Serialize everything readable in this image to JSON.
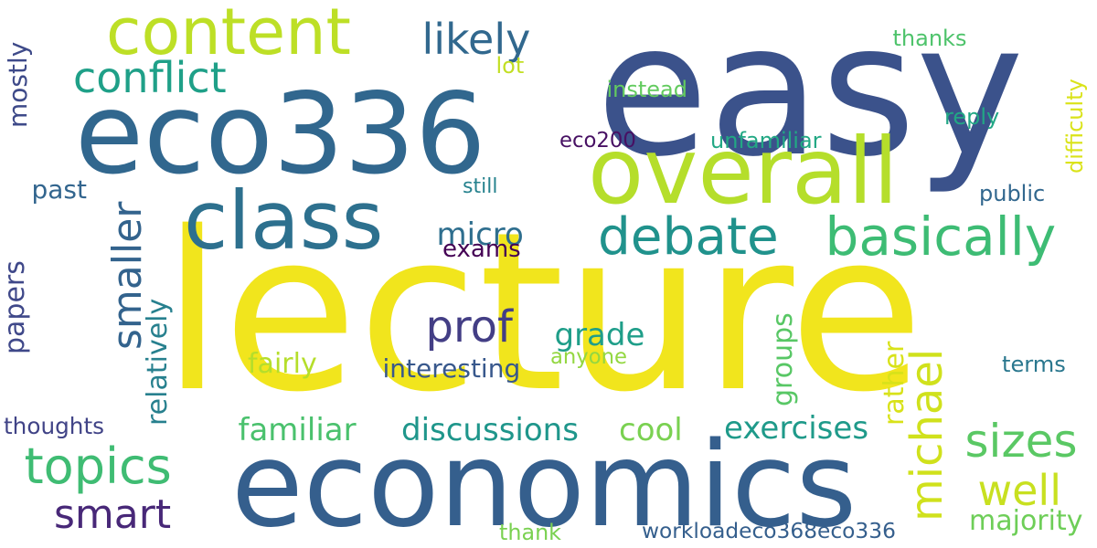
{
  "words": [
    {
      "text": "lecture",
      "color": "#f1e51d"
    },
    {
      "text": "easy",
      "color": "#3b528b"
    },
    {
      "text": "economics",
      "color": "#355f8d"
    },
    {
      "text": "eco336",
      "color": "#31678e"
    },
    {
      "text": "overall",
      "color": "#b5de2b"
    },
    {
      "text": "content",
      "color": "#bddf26"
    },
    {
      "text": "class",
      "color": "#2d708e"
    },
    {
      "text": "debate",
      "color": "#20928c"
    },
    {
      "text": "basically",
      "color": "#3dbc74"
    },
    {
      "text": "topics",
      "color": "#3fbc73"
    },
    {
      "text": "conflict",
      "color": "#1fa088"
    },
    {
      "text": "likely",
      "color": "#31688e"
    },
    {
      "text": "smaller",
      "color": "#33638d"
    },
    {
      "text": "prof",
      "color": "#433e85"
    },
    {
      "text": "smart",
      "color": "#482878"
    },
    {
      "text": "michael",
      "color": "#d0e11c"
    },
    {
      "text": "sizes",
      "color": "#5ac864"
    },
    {
      "text": "well",
      "color": "#c8e020"
    },
    {
      "text": "majority",
      "color": "#6ece58"
    },
    {
      "text": "exercises",
      "color": "#1f9a8a"
    },
    {
      "text": "discussions",
      "color": "#1f968b"
    },
    {
      "text": "familiar",
      "color": "#4ac16d"
    },
    {
      "text": "cool",
      "color": "#7ad151"
    },
    {
      "text": "grade",
      "color": "#1f9e89"
    },
    {
      "text": "micro",
      "color": "#2e6e8e"
    },
    {
      "text": "exams",
      "color": "#440154"
    },
    {
      "text": "past",
      "color": "#32658e"
    },
    {
      "text": "mostly",
      "color": "#3e4a89"
    },
    {
      "text": "papers",
      "color": "#3f4889"
    },
    {
      "text": "relatively",
      "color": "#27808e"
    },
    {
      "text": "groups",
      "color": "#58c765"
    },
    {
      "text": "rather",
      "color": "#d8e219"
    },
    {
      "text": "fairly",
      "color": "#b5de2b"
    },
    {
      "text": "interesting",
      "color": "#38588c"
    },
    {
      "text": "anyone",
      "color": "#93d741"
    },
    {
      "text": "terms",
      "color": "#2a778e"
    },
    {
      "text": "thoughts",
      "color": "#414487"
    },
    {
      "text": "thank",
      "color": "#7ad151"
    },
    {
      "text": "workloadeco368eco336",
      "color": "#355f8d"
    },
    {
      "text": "difficulty",
      "color": "#dae319"
    },
    {
      "text": "thanks",
      "color": "#4ec36b"
    },
    {
      "text": "lot",
      "color": "#c2df23"
    },
    {
      "text": "instead",
      "color": "#63cb5f"
    },
    {
      "text": "reply",
      "color": "#22a785"
    },
    {
      "text": "eco200",
      "color": "#471063"
    },
    {
      "text": "unfamiliar",
      "color": "#22a884"
    },
    {
      "text": "still",
      "color": "#26828e"
    },
    {
      "text": "public",
      "color": "#31678e"
    }
  ]
}
